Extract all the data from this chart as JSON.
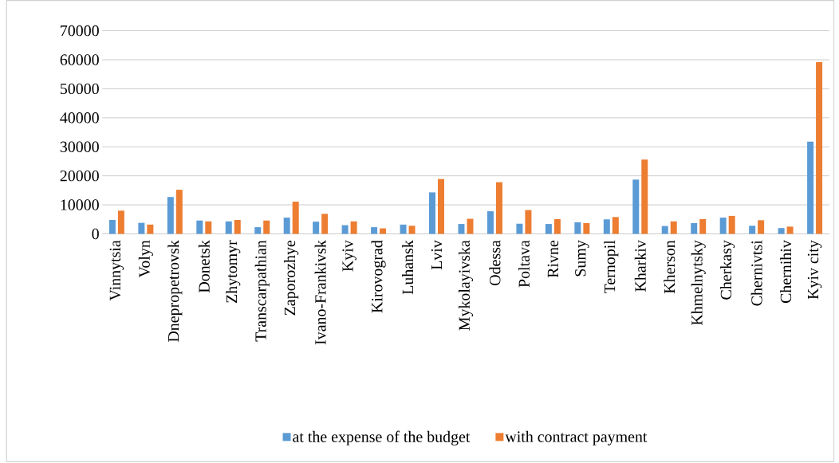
{
  "chart_data": {
    "type": "bar",
    "categories": [
      "Vinnytsia",
      "Volyn",
      "Dnepropetrovsk",
      "Donetsk",
      "Zhytomyr",
      "Transcarpathian",
      "Zaporozhye",
      "Ivano-Frankivsk",
      "Kyiv",
      "Kirovograd",
      "Luhansk",
      "Lviv",
      "Mykolayivska",
      "Odessa",
      "Poltava",
      "Rivne",
      "Sumy",
      "Ternopil",
      "Kharkiv",
      "Kherson",
      "Khmelnytsky",
      "Cherkasy",
      "Chernivtsi",
      "Chernihiv",
      "Kyiv city"
    ],
    "series": [
      {
        "name": "at the expense of the budget",
        "color": "#5b9bd5",
        "values": [
          4800,
          3800,
          12700,
          4600,
          4300,
          2300,
          5600,
          4200,
          3000,
          2300,
          3200,
          14300,
          3400,
          7800,
          3500,
          3400,
          4000,
          5000,
          18700,
          2700,
          3700,
          5600,
          2800,
          2000,
          31800
        ]
      },
      {
        "name": "with contract payment",
        "color": "#ed7d31",
        "values": [
          8000,
          3200,
          15200,
          4300,
          4800,
          4600,
          11100,
          6900,
          4300,
          1900,
          2800,
          18900,
          5200,
          17800,
          8200,
          5100,
          3700,
          5800,
          25600,
          4300,
          5100,
          6200,
          4700,
          2500,
          59200
        ]
      }
    ],
    "ylim": [
      0,
      70000
    ],
    "yticks": [
      0,
      10000,
      20000,
      30000,
      40000,
      50000,
      60000,
      70000
    ],
    "grid": "y",
    "legend": "bottom"
  }
}
